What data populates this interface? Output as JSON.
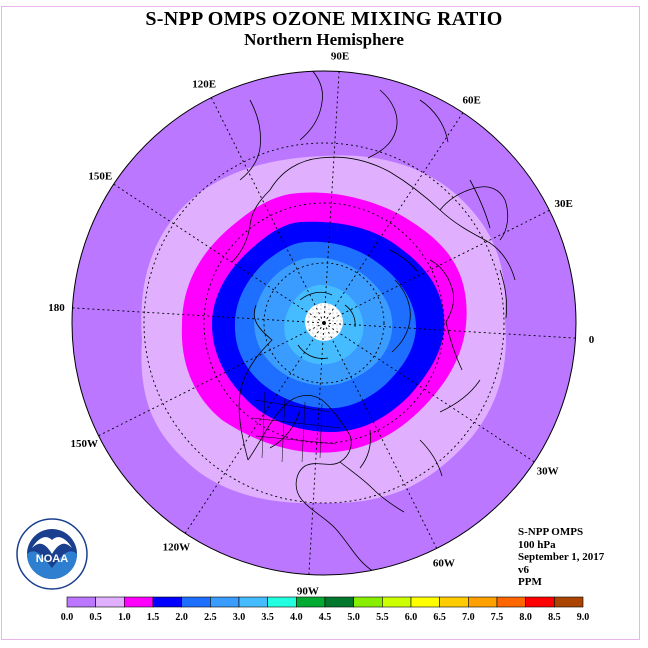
{
  "title": "S-NPP OMPS OZONE MIXING RATIO",
  "subtitle": "Northern Hemisphere",
  "longitude_labels": [
    {
      "text": "90E",
      "lon": 90
    },
    {
      "text": "60E",
      "lon": 60
    },
    {
      "text": "30E",
      "lon": 30
    },
    {
      "text": "0",
      "lon": 0
    },
    {
      "text": "30W",
      "lon": -30
    },
    {
      "text": "60W",
      "lon": -60
    },
    {
      "text": "90W",
      "lon": -90
    },
    {
      "text": "120W",
      "lon": -120
    },
    {
      "text": "150W",
      "lon": -150
    },
    {
      "text": "180",
      "lon": 180
    },
    {
      "text": "150E",
      "lon": 150
    },
    {
      "text": "120E",
      "lon": 120
    }
  ],
  "info": {
    "instrument": "S-NPP OMPS",
    "level": "100 hPa",
    "date": "September 1, 2017",
    "version": "v6",
    "units": "PPM"
  },
  "logo": {
    "text": "NOAA",
    "ring_text": "NATIONAL OCEANIC AND ATMOSPHERIC ADMINISTRATION · U.S. DEPARTMENT OF COMMERCE"
  },
  "colorbar": {
    "ticks": [
      "0.0",
      "0.5",
      "1.0",
      "1.5",
      "2.0",
      "2.5",
      "3.0",
      "3.5",
      "4.0",
      "4.5",
      "5.0",
      "5.5",
      "6.0",
      "6.5",
      "7.0",
      "7.5",
      "8.0",
      "8.5",
      "9.0"
    ],
    "colors": [
      "#bb77ff",
      "#e0b0ff",
      "#ff00ff",
      "#0000ff",
      "#1e6fff",
      "#3a9cff",
      "#44bcff",
      "#22ffe0",
      "#00aa33",
      "#00772a",
      "#88ee00",
      "#ccff00",
      "#ffff00",
      "#ffcc00",
      "#ffa000",
      "#ff6600",
      "#ff0000",
      "#aa4400"
    ]
  },
  "contour_levels": [
    {
      "value": "0.0-0.5",
      "color": "#bb77ff"
    },
    {
      "value": "0.5-1.0",
      "color": "#e0b0ff"
    },
    {
      "value": "1.0-1.5",
      "color": "#ff00ff"
    },
    {
      "value": "1.5-2.0",
      "color": "#0000ff"
    },
    {
      "value": "2.0-2.5",
      "color": "#1e6fff"
    },
    {
      "value": "2.5-3.0",
      "color": "#3a9cff"
    },
    {
      "value": "3.0-3.5",
      "color": "#44bcff"
    }
  ]
}
